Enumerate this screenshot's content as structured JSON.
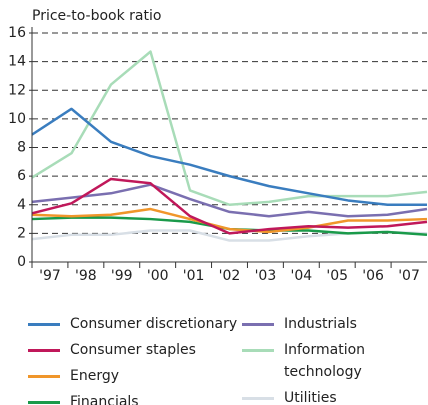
{
  "chart_data": {
    "type": "line",
    "y_label": "Price-to-book ratio",
    "categories": [
      "'97",
      "'98",
      "'99",
      "'00",
      "'01",
      "'02",
      "'03",
      "'04",
      "'05",
      "'06",
      "'07"
    ],
    "ylim": [
      0,
      16
    ],
    "yticks": [
      0,
      2,
      4,
      6,
      8,
      10,
      12,
      14,
      16
    ],
    "grid": true,
    "series": [
      {
        "name": "Consumer discretionary",
        "color": "#3a7dbf",
        "values": [
          8.9,
          10.7,
          8.4,
          7.4,
          6.8,
          6.0,
          5.3,
          4.8,
          4.3,
          4.0,
          4.0
        ]
      },
      {
        "name": "Consumer staples",
        "color": "#c0185a",
        "values": [
          3.4,
          4.1,
          5.8,
          5.5,
          3.2,
          2.0,
          2.3,
          2.5,
          2.4,
          2.5,
          2.8
        ]
      },
      {
        "name": "Energy",
        "color": "#f0962a",
        "values": [
          3.3,
          3.2,
          3.3,
          3.7,
          3.0,
          2.3,
          2.1,
          2.4,
          2.9,
          2.9,
          3.0
        ]
      },
      {
        "name": "Financials",
        "color": "#1a9a4a",
        "values": [
          3.0,
          3.1,
          3.1,
          3.0,
          2.8,
          2.3,
          2.2,
          2.2,
          2.0,
          2.1,
          1.9
        ]
      },
      {
        "name": "Industrials",
        "color": "#7a6fb0",
        "values": [
          4.2,
          4.5,
          4.8,
          5.4,
          4.4,
          3.5,
          3.2,
          3.5,
          3.2,
          3.3,
          3.7
        ]
      },
      {
        "name": "Information technology",
        "color": "#a8dcb8",
        "values": [
          5.9,
          7.6,
          12.4,
          14.7,
          5.0,
          4.0,
          4.2,
          4.6,
          4.6,
          4.6,
          4.9
        ]
      },
      {
        "name": "Utilities",
        "color": "#d8dfe6",
        "values": [
          1.6,
          1.9,
          1.9,
          2.2,
          2.2,
          1.5,
          1.5,
          1.8,
          2.0,
          2.1,
          2.0
        ]
      }
    ]
  }
}
